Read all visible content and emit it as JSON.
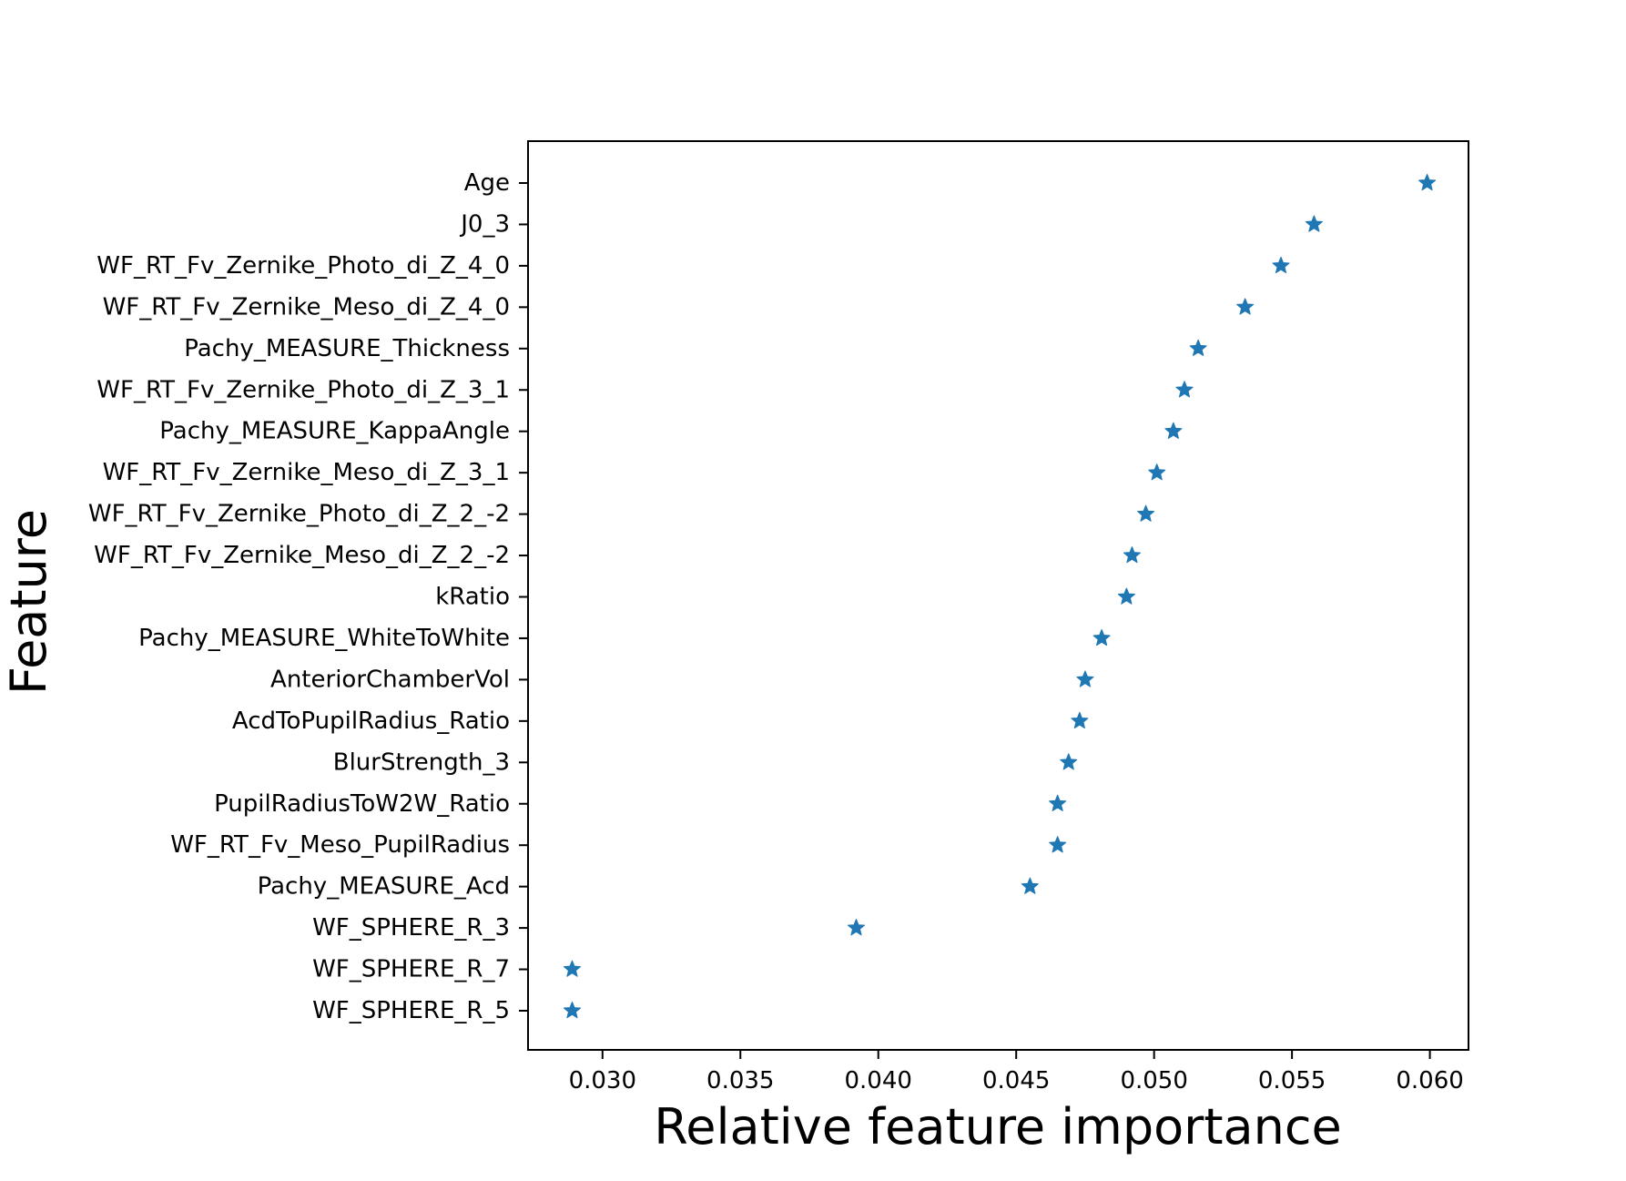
{
  "chart_data": {
    "type": "scatter",
    "marker": "star",
    "color": "#1f77b4",
    "title": "",
    "xlabel": "Relative feature importance",
    "ylabel": "Feature",
    "xlim": [
      0.0273,
      0.0614
    ],
    "xticks": [
      "0.030",
      "0.035",
      "0.040",
      "0.045",
      "0.050",
      "0.055",
      "0.060"
    ],
    "grid": false,
    "points": [
      {
        "feature": "Age",
        "value": 0.0599
      },
      {
        "feature": "J0_3",
        "value": 0.0558
      },
      {
        "feature": "WF_RT_Fv_Zernike_Photo_di_Z_4_0",
        "value": 0.0546
      },
      {
        "feature": "WF_RT_Fv_Zernike_Meso_di_Z_4_0",
        "value": 0.0533
      },
      {
        "feature": "Pachy_MEASURE_Thickness",
        "value": 0.0516
      },
      {
        "feature": "WF_RT_Fv_Zernike_Photo_di_Z_3_1",
        "value": 0.0511
      },
      {
        "feature": "Pachy_MEASURE_KappaAngle",
        "value": 0.0507
      },
      {
        "feature": "WF_RT_Fv_Zernike_Meso_di_Z_3_1",
        "value": 0.0501
      },
      {
        "feature": "WF_RT_Fv_Zernike_Photo_di_Z_2_-2",
        "value": 0.0497
      },
      {
        "feature": "WF_RT_Fv_Zernike_Meso_di_Z_2_-2",
        "value": 0.0492
      },
      {
        "feature": "kRatio",
        "value": 0.049
      },
      {
        "feature": "Pachy_MEASURE_WhiteToWhite",
        "value": 0.0481
      },
      {
        "feature": "AnteriorChamberVol",
        "value": 0.0475
      },
      {
        "feature": "AcdToPupilRadius_Ratio",
        "value": 0.0473
      },
      {
        "feature": "BlurStrength_3",
        "value": 0.0469
      },
      {
        "feature": "PupilRadiusToW2W_Ratio",
        "value": 0.0465
      },
      {
        "feature": "WF_RT_Fv_Meso_PupilRadius",
        "value": 0.0465
      },
      {
        "feature": "Pachy_MEASURE_Acd",
        "value": 0.0455
      },
      {
        "feature": "WF_SPHERE_R_3",
        "value": 0.0392
      },
      {
        "feature": "WF_SPHERE_R_7",
        "value": 0.0289
      },
      {
        "feature": "WF_SPHERE_R_5",
        "value": 0.0289
      }
    ]
  }
}
